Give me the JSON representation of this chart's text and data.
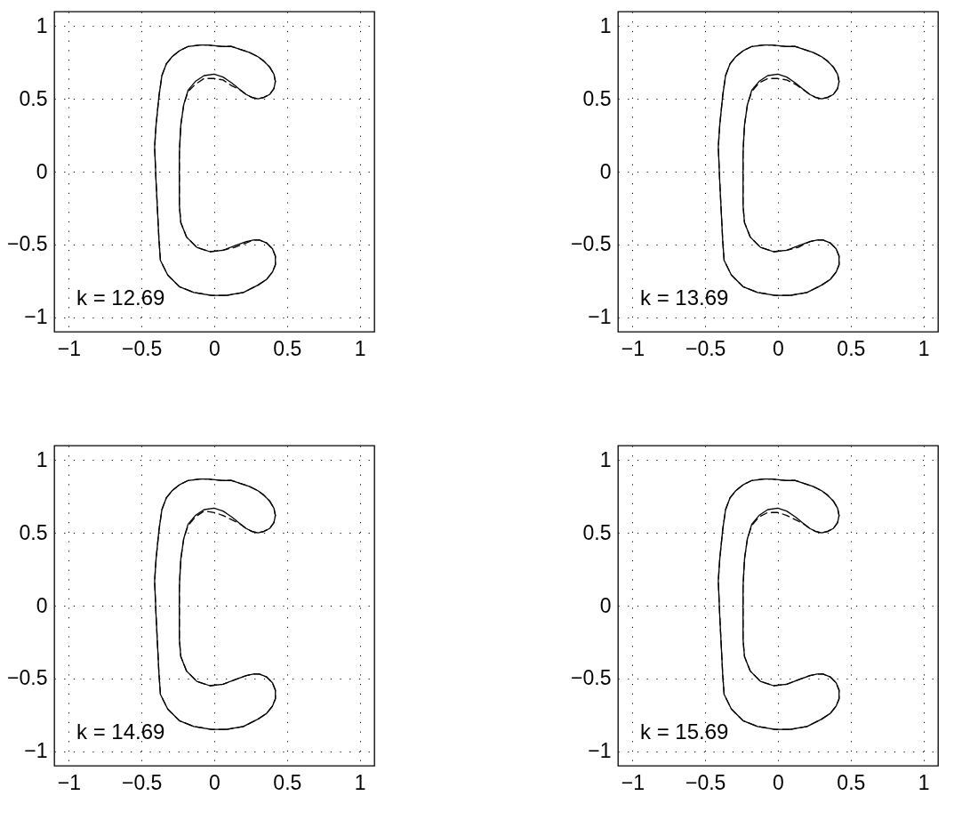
{
  "chart_data": [
    {
      "type": "line",
      "xlim": [
        -1.1,
        1.1
      ],
      "ylim": [
        -1.1,
        1.1
      ],
      "xticks": [
        -1,
        -0.5,
        0,
        0.5,
        1
      ],
      "yticks": [
        -1,
        -0.5,
        0,
        0.5,
        1
      ],
      "grid": true,
      "annotations": [
        "k = 12.69"
      ],
      "series": [
        {
          "color": "#000000",
          "line_style": "solid",
          "x": [
            -0.04,
            0.06,
            0.12,
            0.18,
            0.24,
            0.3,
            0.34,
            0.38,
            0.41,
            0.42,
            0.41,
            0.38,
            0.34,
            0.3,
            0.26,
            0.22,
            0.18,
            0.12,
            0.06,
            0,
            -0.07,
            -0.13,
            -0.18,
            -0.21,
            -0.23,
            -0.24,
            -0.24,
            -0.24,
            -0.23,
            -0.19,
            -0.12,
            -0.03,
            0.06,
            0.14,
            0.22,
            0.27,
            0.31,
            0.36,
            0.4,
            0.42,
            0.42,
            0.4,
            0.36,
            0.3,
            0.2,
            0.08,
            -0.02,
            -0.14,
            -0.24,
            -0.32,
            -0.37,
            -0.38,
            -0.39,
            -0.4,
            -0.41,
            -0.4,
            -0.38,
            -0.36,
            -0.33,
            -0.29,
            -0.24,
            -0.18,
            -0.1,
            -0.05
          ],
          "values": [
            0.87,
            0.86,
            0.86,
            0.84,
            0.82,
            0.79,
            0.76,
            0.72,
            0.67,
            0.62,
            0.57,
            0.53,
            0.51,
            0.5,
            0.51,
            0.53,
            0.56,
            0.61,
            0.65,
            0.67,
            0.66,
            0.62,
            0.56,
            0.46,
            0.32,
            0.13,
            -0.07,
            -0.23,
            -0.35,
            -0.45,
            -0.52,
            -0.55,
            -0.54,
            -0.51,
            -0.48,
            -0.47,
            -0.47,
            -0.49,
            -0.53,
            -0.58,
            -0.64,
            -0.69,
            -0.74,
            -0.78,
            -0.83,
            -0.85,
            -0.85,
            -0.83,
            -0.79,
            -0.71,
            -0.61,
            -0.47,
            -0.27,
            -0.07,
            0.17,
            0.32,
            0.52,
            0.66,
            0.74,
            0.79,
            0.83,
            0.86,
            0.87,
            0.87
          ]
        },
        {
          "color": "#000000",
          "line_style": "dashed",
          "x": [
            0.08,
            -0.02,
            -0.14,
            -0.24,
            -0.32,
            -0.37,
            -0.38,
            -0.39,
            -0.4,
            -0.41,
            -0.4,
            -0.38,
            -0.36,
            -0.33,
            -0.29,
            -0.24,
            -0.18,
            -0.1,
            -0.05,
            -0.04,
            0.06,
            0.12,
            0.18,
            0.24,
            0.3,
            0.34,
            0.38,
            0.41,
            0.42,
            0.41,
            0.38,
            0.34,
            0.3,
            0.26,
            0.22,
            0.18,
            0.12,
            0.06,
            0,
            -0.07,
            -0.13,
            -0.18,
            -0.21,
            -0.23,
            -0.24,
            -0.24,
            -0.24,
            -0.23,
            -0.19,
            -0.12,
            -0.03,
            0.06,
            0.14,
            0.22,
            0.27,
            0.31,
            0.36,
            0.4,
            0.42,
            0.42,
            0.4,
            0.36,
            0.3,
            0.2,
            0.09
          ],
          "values": [
            -0.85,
            -0.85,
            -0.83,
            -0.79,
            -0.71,
            -0.61,
            -0.47,
            -0.27,
            -0.07,
            0.17,
            0.32,
            0.52,
            0.66,
            0.74,
            0.79,
            0.83,
            0.86,
            0.87,
            0.87,
            0.87,
            0.86,
            0.86,
            0.84,
            0.82,
            0.79,
            0.76,
            0.72,
            0.67,
            0.62,
            0.57,
            0.53,
            0.51,
            0.5,
            0.51,
            0.53,
            0.56,
            0.59,
            0.63,
            0.64,
            0.64,
            0.6,
            0.55,
            0.46,
            0.32,
            0.13,
            -0.07,
            -0.23,
            -0.35,
            -0.45,
            -0.52,
            -0.55,
            -0.54,
            -0.52,
            -0.49,
            -0.47,
            -0.47,
            -0.49,
            -0.53,
            -0.58,
            -0.64,
            -0.69,
            -0.74,
            -0.78,
            -0.83,
            -0.85
          ]
        }
      ]
    },
    {
      "type": "line",
      "xlim": [
        -1.1,
        1.1
      ],
      "ylim": [
        -1.1,
        1.1
      ],
      "xticks": [
        -1,
        -0.5,
        0,
        0.5,
        1
      ],
      "yticks": [
        -1,
        -0.5,
        0,
        0.5,
        1
      ],
      "grid": true,
      "annotations": [
        "k = 13.69"
      ],
      "series": [
        {
          "color": "#000000",
          "line_style": "solid",
          "x": [
            -0.04,
            0.06,
            0.12,
            0.18,
            0.24,
            0.3,
            0.34,
            0.38,
            0.41,
            0.42,
            0.41,
            0.38,
            0.34,
            0.3,
            0.26,
            0.22,
            0.18,
            0.12,
            0.06,
            0,
            -0.07,
            -0.13,
            -0.18,
            -0.21,
            -0.23,
            -0.24,
            -0.24,
            -0.24,
            -0.23,
            -0.19,
            -0.12,
            -0.03,
            0.06,
            0.14,
            0.22,
            0.27,
            0.31,
            0.36,
            0.4,
            0.42,
            0.42,
            0.4,
            0.36,
            0.3,
            0.2,
            0.08,
            -0.02,
            -0.14,
            -0.24,
            -0.32,
            -0.37,
            -0.38,
            -0.39,
            -0.4,
            -0.41,
            -0.4,
            -0.38,
            -0.36,
            -0.33,
            -0.29,
            -0.24,
            -0.18,
            -0.1,
            -0.05
          ],
          "values": [
            0.87,
            0.86,
            0.86,
            0.84,
            0.82,
            0.79,
            0.76,
            0.72,
            0.67,
            0.62,
            0.57,
            0.53,
            0.51,
            0.5,
            0.51,
            0.53,
            0.56,
            0.61,
            0.65,
            0.67,
            0.66,
            0.62,
            0.56,
            0.46,
            0.32,
            0.13,
            -0.07,
            -0.23,
            -0.35,
            -0.45,
            -0.52,
            -0.55,
            -0.54,
            -0.51,
            -0.48,
            -0.47,
            -0.47,
            -0.49,
            -0.53,
            -0.58,
            -0.64,
            -0.69,
            -0.74,
            -0.78,
            -0.83,
            -0.85,
            -0.85,
            -0.83,
            -0.79,
            -0.71,
            -0.61,
            -0.47,
            -0.27,
            -0.07,
            0.17,
            0.32,
            0.52,
            0.66,
            0.74,
            0.79,
            0.83,
            0.86,
            0.87,
            0.87
          ]
        },
        {
          "color": "#000000",
          "line_style": "dashed",
          "x": [
            0.08,
            -0.02,
            -0.14,
            -0.24,
            -0.32,
            -0.37,
            -0.38,
            -0.39,
            -0.4,
            -0.41,
            -0.4,
            -0.38,
            -0.36,
            -0.33,
            -0.29,
            -0.24,
            -0.18,
            -0.1,
            -0.05,
            -0.04,
            0.06,
            0.12,
            0.18,
            0.24,
            0.3,
            0.34,
            0.38,
            0.41,
            0.42,
            0.41,
            0.38,
            0.34,
            0.3,
            0.26,
            0.22,
            0.18,
            0.12,
            0.06,
            0,
            -0.07,
            -0.13,
            -0.18,
            -0.21,
            -0.23,
            -0.24,
            -0.24,
            -0.24,
            -0.23,
            -0.19,
            -0.12,
            -0.03,
            0.06,
            0.14,
            0.22,
            0.27,
            0.31,
            0.36,
            0.4,
            0.42,
            0.42,
            0.4,
            0.36,
            0.3,
            0.2,
            0.09
          ],
          "values": [
            -0.85,
            -0.85,
            -0.83,
            -0.79,
            -0.71,
            -0.61,
            -0.47,
            -0.27,
            -0.07,
            0.17,
            0.32,
            0.52,
            0.66,
            0.74,
            0.79,
            0.83,
            0.86,
            0.87,
            0.87,
            0.87,
            0.86,
            0.86,
            0.84,
            0.82,
            0.79,
            0.76,
            0.72,
            0.67,
            0.62,
            0.57,
            0.53,
            0.51,
            0.5,
            0.51,
            0.53,
            0.56,
            0.6,
            0.63,
            0.64,
            0.64,
            0.61,
            0.55,
            0.46,
            0.32,
            0.13,
            -0.07,
            -0.23,
            -0.35,
            -0.45,
            -0.52,
            -0.55,
            -0.54,
            -0.52,
            -0.48,
            -0.47,
            -0.47,
            -0.49,
            -0.53,
            -0.58,
            -0.64,
            -0.69,
            -0.74,
            -0.78,
            -0.83,
            -0.85
          ]
        }
      ]
    },
    {
      "type": "line",
      "xlim": [
        -1.1,
        1.1
      ],
      "ylim": [
        -1.1,
        1.1
      ],
      "xticks": [
        -1,
        -0.5,
        0,
        0.5,
        1
      ],
      "yticks": [
        -1,
        -0.5,
        0,
        0.5,
        1
      ],
      "grid": true,
      "annotations": [
        "k = 14.69"
      ],
      "series": [
        {
          "color": "#000000",
          "line_style": "solid",
          "x": [
            -0.04,
            0.06,
            0.12,
            0.18,
            0.24,
            0.3,
            0.34,
            0.38,
            0.41,
            0.42,
            0.41,
            0.38,
            0.34,
            0.3,
            0.26,
            0.22,
            0.18,
            0.12,
            0.06,
            0,
            -0.07,
            -0.13,
            -0.18,
            -0.21,
            -0.23,
            -0.24,
            -0.24,
            -0.24,
            -0.23,
            -0.19,
            -0.12,
            -0.03,
            0.06,
            0.14,
            0.22,
            0.27,
            0.31,
            0.36,
            0.4,
            0.42,
            0.42,
            0.4,
            0.36,
            0.3,
            0.2,
            0.08,
            -0.02,
            -0.14,
            -0.24,
            -0.32,
            -0.37,
            -0.38,
            -0.39,
            -0.4,
            -0.41,
            -0.4,
            -0.38,
            -0.36,
            -0.33,
            -0.29,
            -0.24,
            -0.18,
            -0.1,
            -0.05
          ],
          "values": [
            0.87,
            0.86,
            0.86,
            0.84,
            0.82,
            0.79,
            0.76,
            0.72,
            0.67,
            0.62,
            0.57,
            0.53,
            0.51,
            0.5,
            0.51,
            0.53,
            0.56,
            0.61,
            0.65,
            0.67,
            0.66,
            0.62,
            0.56,
            0.46,
            0.32,
            0.13,
            -0.07,
            -0.23,
            -0.35,
            -0.45,
            -0.52,
            -0.55,
            -0.54,
            -0.51,
            -0.48,
            -0.47,
            -0.47,
            -0.49,
            -0.53,
            -0.58,
            -0.64,
            -0.69,
            -0.74,
            -0.78,
            -0.83,
            -0.85,
            -0.85,
            -0.83,
            -0.79,
            -0.71,
            -0.61,
            -0.47,
            -0.27,
            -0.07,
            0.17,
            0.32,
            0.52,
            0.66,
            0.74,
            0.79,
            0.83,
            0.86,
            0.87,
            0.87
          ]
        },
        {
          "color": "#000000",
          "line_style": "dashed",
          "x": [
            0.08,
            -0.02,
            -0.14,
            -0.24,
            -0.32,
            -0.37,
            -0.38,
            -0.39,
            -0.4,
            -0.41,
            -0.4,
            -0.38,
            -0.36,
            -0.33,
            -0.29,
            -0.24,
            -0.18,
            -0.1,
            -0.05,
            -0.04,
            0.06,
            0.12,
            0.18,
            0.24,
            0.3,
            0.34,
            0.38,
            0.41,
            0.42,
            0.41,
            0.38,
            0.34,
            0.3,
            0.26,
            0.22,
            0.18,
            0.12,
            0.06,
            0,
            -0.07,
            -0.13,
            -0.18,
            -0.21,
            -0.23,
            -0.24,
            -0.24,
            -0.24,
            -0.23,
            -0.19,
            -0.12,
            -0.03,
            0.06,
            0.14,
            0.22,
            0.27,
            0.31,
            0.36,
            0.4,
            0.42,
            0.42,
            0.4,
            0.36,
            0.3,
            0.2,
            0.09
          ],
          "values": [
            -0.85,
            -0.85,
            -0.83,
            -0.79,
            -0.71,
            -0.61,
            -0.47,
            -0.27,
            -0.07,
            0.17,
            0.32,
            0.52,
            0.66,
            0.74,
            0.79,
            0.83,
            0.86,
            0.87,
            0.87,
            0.87,
            0.86,
            0.86,
            0.84,
            0.82,
            0.79,
            0.76,
            0.72,
            0.67,
            0.62,
            0.57,
            0.53,
            0.51,
            0.5,
            0.51,
            0.53,
            0.56,
            0.59,
            0.62,
            0.64,
            0.65,
            0.61,
            0.55,
            0.46,
            0.32,
            0.13,
            -0.07,
            -0.23,
            -0.35,
            -0.45,
            -0.52,
            -0.55,
            -0.54,
            -0.51,
            -0.48,
            -0.47,
            -0.47,
            -0.49,
            -0.53,
            -0.58,
            -0.64,
            -0.69,
            -0.74,
            -0.78,
            -0.83,
            -0.85
          ]
        }
      ]
    },
    {
      "type": "line",
      "xlim": [
        -1.1,
        1.1
      ],
      "ylim": [
        -1.1,
        1.1
      ],
      "xticks": [
        -1,
        -0.5,
        0,
        0.5,
        1
      ],
      "yticks": [
        -1,
        -0.5,
        0,
        0.5,
        1
      ],
      "grid": true,
      "annotations": [
        "k = 15.69"
      ],
      "series": [
        {
          "color": "#000000",
          "line_style": "solid",
          "x": [
            -0.04,
            0.06,
            0.12,
            0.18,
            0.24,
            0.3,
            0.34,
            0.38,
            0.41,
            0.42,
            0.41,
            0.38,
            0.34,
            0.3,
            0.26,
            0.22,
            0.18,
            0.12,
            0.06,
            0,
            -0.07,
            -0.13,
            -0.18,
            -0.21,
            -0.23,
            -0.24,
            -0.24,
            -0.24,
            -0.23,
            -0.19,
            -0.12,
            -0.03,
            0.06,
            0.14,
            0.22,
            0.27,
            0.31,
            0.36,
            0.4,
            0.42,
            0.42,
            0.4,
            0.36,
            0.3,
            0.2,
            0.08,
            -0.02,
            -0.14,
            -0.24,
            -0.32,
            -0.37,
            -0.38,
            -0.39,
            -0.4,
            -0.41,
            -0.4,
            -0.38,
            -0.36,
            -0.33,
            -0.29,
            -0.24,
            -0.18,
            -0.1,
            -0.05
          ],
          "values": [
            0.87,
            0.86,
            0.86,
            0.84,
            0.82,
            0.79,
            0.76,
            0.72,
            0.67,
            0.62,
            0.57,
            0.53,
            0.51,
            0.5,
            0.51,
            0.53,
            0.56,
            0.61,
            0.65,
            0.67,
            0.66,
            0.62,
            0.56,
            0.46,
            0.32,
            0.13,
            -0.07,
            -0.23,
            -0.35,
            -0.45,
            -0.52,
            -0.55,
            -0.54,
            -0.51,
            -0.48,
            -0.47,
            -0.47,
            -0.49,
            -0.53,
            -0.58,
            -0.64,
            -0.69,
            -0.74,
            -0.78,
            -0.83,
            -0.85,
            -0.85,
            -0.83,
            -0.79,
            -0.71,
            -0.61,
            -0.47,
            -0.27,
            -0.07,
            0.17,
            0.32,
            0.52,
            0.66,
            0.74,
            0.79,
            0.83,
            0.86,
            0.87,
            0.87
          ]
        },
        {
          "color": "#000000",
          "line_style": "dashed",
          "x": [
            0.08,
            -0.02,
            -0.14,
            -0.24,
            -0.32,
            -0.37,
            -0.38,
            -0.39,
            -0.4,
            -0.41,
            -0.4,
            -0.38,
            -0.36,
            -0.33,
            -0.29,
            -0.24,
            -0.18,
            -0.1,
            -0.05,
            -0.04,
            0.06,
            0.12,
            0.18,
            0.24,
            0.3,
            0.34,
            0.38,
            0.41,
            0.42,
            0.41,
            0.38,
            0.34,
            0.3,
            0.26,
            0.22,
            0.18,
            0.12,
            0.06,
            0,
            -0.07,
            -0.13,
            -0.18,
            -0.21,
            -0.23,
            -0.24,
            -0.24,
            -0.24,
            -0.23,
            -0.19,
            -0.12,
            -0.03,
            0.06,
            0.14,
            0.22,
            0.27,
            0.31,
            0.36,
            0.4,
            0.42,
            0.42,
            0.4,
            0.36,
            0.3,
            0.2,
            0.09
          ],
          "values": [
            -0.85,
            -0.85,
            -0.83,
            -0.79,
            -0.71,
            -0.61,
            -0.47,
            -0.27,
            -0.07,
            0.17,
            0.32,
            0.52,
            0.66,
            0.74,
            0.79,
            0.83,
            0.86,
            0.87,
            0.87,
            0.87,
            0.86,
            0.86,
            0.84,
            0.82,
            0.79,
            0.76,
            0.72,
            0.67,
            0.62,
            0.57,
            0.53,
            0.51,
            0.5,
            0.51,
            0.53,
            0.56,
            0.59,
            0.62,
            0.64,
            0.64,
            0.61,
            0.55,
            0.46,
            0.32,
            0.13,
            -0.07,
            -0.23,
            -0.35,
            -0.45,
            -0.52,
            -0.55,
            -0.54,
            -0.51,
            -0.48,
            -0.47,
            -0.47,
            -0.49,
            -0.53,
            -0.58,
            -0.64,
            -0.69,
            -0.74,
            -0.78,
            -0.83,
            -0.85
          ]
        }
      ]
    }
  ]
}
